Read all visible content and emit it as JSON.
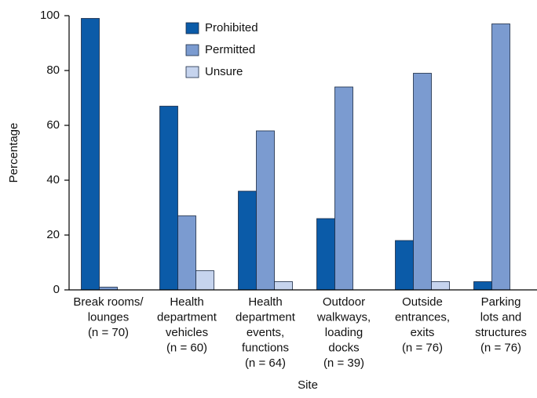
{
  "chart_data": {
    "type": "bar",
    "x_label": "Site",
    "y_label": "Percentage",
    "categories": [
      "Break rooms/\nlounges\n(n = 70)",
      "Health\ndepartment\nvehicles\n(n = 60)",
      "Health\ndepartment\nevents,\nfunctions\n(n = 64)",
      "Outdoor\nwalkways,\nloading\ndocks\n(n = 39)",
      "Outside\nentrances,\nexits\n(n = 76)",
      "Parking\nlots and\nstructures\n(n = 76)"
    ],
    "series": [
      {
        "name": "Prohibited",
        "color": "#0b5ba8",
        "values": [
          99,
          67,
          36,
          26,
          18,
          3
        ]
      },
      {
        "name": "Permitted",
        "color": "#7b9bd0",
        "values": [
          1,
          27,
          58,
          74,
          79,
          97
        ]
      },
      {
        "name": "Unsure",
        "color": "#c6d4ee",
        "values": [
          0,
          7,
          3,
          0,
          3,
          0
        ]
      }
    ],
    "ylim": [
      0,
      100
    ],
    "yticks": [
      0,
      20,
      40,
      60,
      80,
      100
    ],
    "grid": false,
    "legend": "top-left"
  }
}
